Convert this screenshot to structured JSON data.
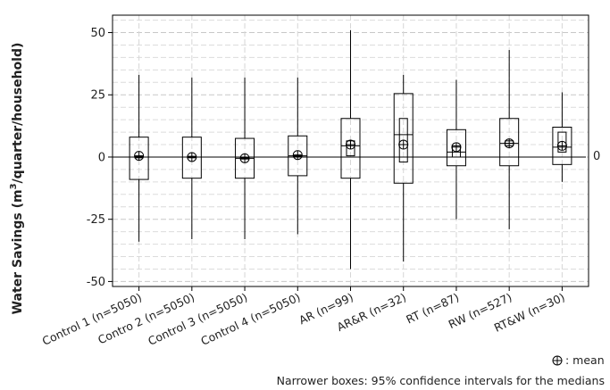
{
  "chart_data": {
    "type": "box",
    "ylabel": "Water Savings (m³/quarter/household)",
    "ylabel_plain": "Water Savings (m",
    "ylabel_sup": "3",
    "ylabel_rest": "/quarter/household)",
    "ylim": [
      -52,
      57
    ],
    "yticks": [
      -50,
      -25,
      0,
      25,
      50
    ],
    "grid": true,
    "reference_line": 0,
    "reference_label": "0",
    "legend_mean_label": ": mean",
    "note": "Narrower boxes: 95% confidence intervals for the medians",
    "categories": [
      "Control 1 (n=5050)",
      "Contro 2 (n=5050)",
      "Control 3 (n=5050)",
      "Control 4 (n=5050)",
      "AR (n=99)",
      "AR&R (n=32)",
      "RT (n=87)",
      "RW (n=527)",
      "RT&W (n=30)"
    ],
    "boxes": [
      {
        "min": -34,
        "q1": -9,
        "median": 0,
        "q3": 8,
        "max": 33,
        "mean": 0.5,
        "ci": [
          -0.3,
          0.3
        ]
      },
      {
        "min": -33,
        "q1": -8.5,
        "median": 0,
        "q3": 8,
        "max": 32,
        "mean": 0,
        "ci": [
          -0.3,
          0.3
        ]
      },
      {
        "min": -33,
        "q1": -8.5,
        "median": -0.5,
        "q3": 7.5,
        "max": 32,
        "mean": -0.5,
        "ci": [
          -0.8,
          -0.2
        ]
      },
      {
        "min": -31,
        "q1": -7.5,
        "median": 0.5,
        "q3": 8.5,
        "max": 32,
        "mean": 0.8,
        "ci": [
          0.2,
          0.8
        ]
      },
      {
        "min": -45,
        "q1": -8.5,
        "median": 4.5,
        "q3": 15.5,
        "max": 51,
        "mean": 5,
        "ci": [
          0.5,
          6.5
        ]
      },
      {
        "min": -42,
        "q1": -10.5,
        "median": 9,
        "q3": 25.5,
        "max": 33,
        "mean": 5,
        "ci": [
          -2,
          15.5
        ]
      },
      {
        "min": -25,
        "q1": -3.5,
        "median": 2,
        "q3": 11,
        "max": 31,
        "mean": 4,
        "ci": [
          0,
          4.5
        ]
      },
      {
        "min": -29,
        "q1": -3.5,
        "median": 5.5,
        "q3": 15.5,
        "max": 43,
        "mean": 5.5,
        "ci": [
          4.5,
          6.5
        ]
      },
      {
        "min": -10,
        "q1": -3,
        "median": 4,
        "q3": 12,
        "max": 26,
        "mean": 4.5,
        "ci": [
          2,
          10
        ]
      }
    ]
  }
}
